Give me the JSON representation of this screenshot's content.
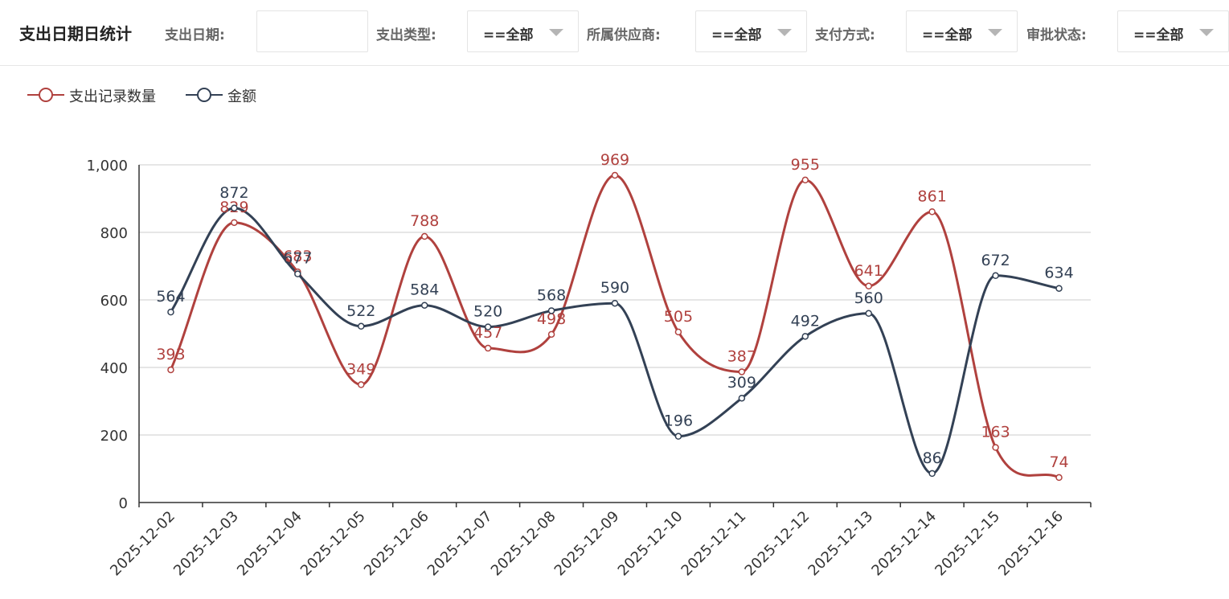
{
  "header": {
    "title": "支出日期日统计",
    "filters": [
      {
        "label": "支出日期:",
        "value": "",
        "placeholder": ""
      },
      {
        "label": "支出类型:",
        "value": "==全部"
      },
      {
        "label": "所属供应商:",
        "value": "==全部"
      },
      {
        "label": "支付方式:",
        "value": "==全部"
      },
      {
        "label": "审批状态:",
        "value": "==全部"
      }
    ]
  },
  "colors": {
    "series_count": "#b0413e",
    "series_amount": "#334155",
    "grid": "#cccccc",
    "axis": "#333333"
  },
  "chart_data": {
    "type": "line",
    "smooth": true,
    "categories": [
      "2025-12-02",
      "2025-12-03",
      "2025-12-04",
      "2025-12-05",
      "2025-12-06",
      "2025-12-07",
      "2025-12-08",
      "2025-12-09",
      "2025-12-10",
      "2025-12-11",
      "2025-12-12",
      "2025-12-13",
      "2025-12-14",
      "2025-12-15",
      "2025-12-16"
    ],
    "series": [
      {
        "name": "支出记录数量",
        "values": [
          393,
          829,
          683,
          349,
          788,
          457,
          498,
          969,
          505,
          387,
          955,
          641,
          861,
          163,
          74
        ]
      },
      {
        "name": "金额",
        "values": [
          564,
          872,
          677,
          522,
          584,
          520,
          568,
          590,
          196,
          309,
          492,
          560,
          86,
          672,
          634
        ]
      }
    ],
    "ylim": [
      0,
      1000
    ],
    "yticks": [
      "0",
      "200",
      "400",
      "600",
      "800",
      "1,000"
    ],
    "grid": true,
    "data_labels": true,
    "legend_position": "top-left"
  }
}
